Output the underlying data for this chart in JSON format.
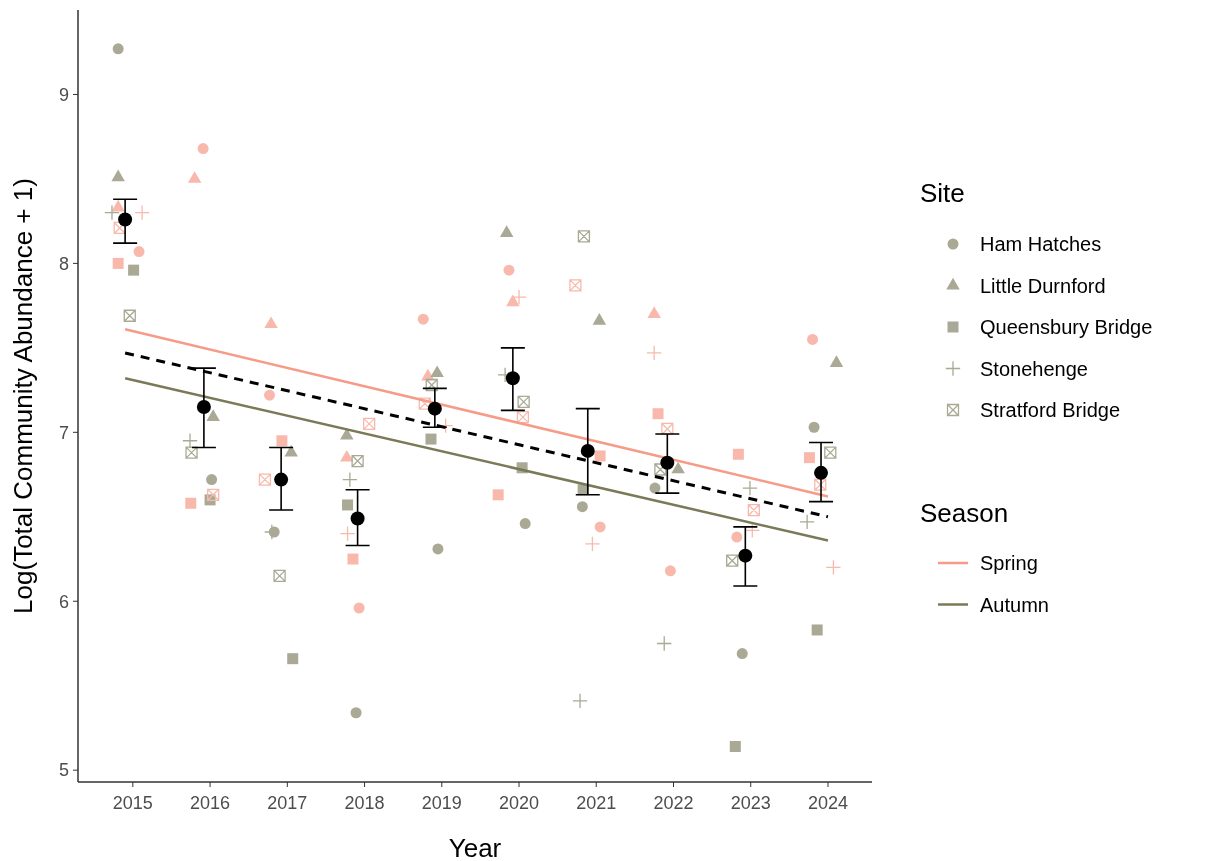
{
  "chart_data": {
    "type": "scatter",
    "xlabel": "Year",
    "ylabel": "Log(Total Community Abundance + 1)",
    "legend_title": "Site",
    "annotations": [
      "Season"
    ],
    "legend": "right",
    "grid": false,
    "xlim": [
      2014.29,
      2024.57
    ],
    "xticks": [
      2015,
      2016,
      2017,
      2018,
      2019,
      2020,
      2021,
      2022,
      2023,
      2024
    ],
    "ylim": [
      4.93,
      9.5
    ],
    "yticks": [
      5,
      6,
      7,
      8,
      9
    ],
    "series": [
      {
        "name": "Ham Hatches",
        "marker": "circle",
        "color": "#a9a995",
        "x": [
          2014.81,
          2015.08,
          2015.91,
          2016.02,
          2016.77,
          2016.83,
          2017.93,
          2017.89,
          2018.76,
          2018.95,
          2019.87,
          2020.08,
          2020.82,
          2021.05,
          2021.96,
          2021.76,
          2022.82,
          2022.89,
          2023.8,
          2023.82
        ],
        "values": [
          9.27,
          8.07,
          8.68,
          6.72,
          7.22,
          6.41,
          5.96,
          5.34,
          7.67,
          6.31,
          7.96,
          6.46,
          6.56,
          6.44,
          6.18,
          6.67,
          6.38,
          5.69,
          7.55,
          7.03
        ],
        "colors": [
          "#a9a995",
          "#f8b9ac",
          "#f8b9ac",
          "#a9a995",
          "#f8b9ac",
          "#a9a995",
          "#f8b9ac",
          "#a9a995",
          "#f8b9ac",
          "#a9a995",
          "#f8b9ac",
          "#a9a995",
          "#a9a995",
          "#f8b9ac",
          "#f8b9ac",
          "#a9a995",
          "#f8b9ac",
          "#a9a995",
          "#f8b9ac",
          "#a9a995"
        ]
      },
      {
        "name": "Little Durnford",
        "marker": "triangle",
        "color": "#a9a995",
        "x": [
          2014.81,
          2014.81,
          2015.8,
          2016.04,
          2016.79,
          2017.05,
          2017.77,
          2017.77,
          2018.82,
          2018.94,
          2019.84,
          2019.92,
          2021.04,
          2021.75,
          2022.06,
          2024.11
        ],
        "values": [
          8.51,
          8.33,
          8.5,
          7.09,
          7.64,
          6.88,
          6.98,
          6.85,
          7.33,
          7.35,
          8.18,
          7.77,
          7.66,
          7.7,
          6.78,
          7.41
        ],
        "colors": [
          "#a9a995",
          "#f8b9ac",
          "#f8b9ac",
          "#a9a995",
          "#f8b9ac",
          "#a9a995",
          "#a9a995",
          "#f8b9ac",
          "#f8b9ac",
          "#a9a995",
          "#a9a995",
          "#f8b9ac",
          "#a9a995",
          "#f8b9ac",
          "#a9a995",
          "#a9a995"
        ]
      },
      {
        "name": "Queensbury Bridge",
        "marker": "square",
        "color": "#a9a995",
        "x": [
          2014.81,
          2015.01,
          2015.75,
          2016.0,
          2016.93,
          2017.07,
          2017.78,
          2017.85,
          2018.86,
          2020.04,
          2019.73,
          2020.83,
          2021.05,
          2021.8,
          2022.84,
          2022.8,
          2023.76,
          2023.86
        ],
        "values": [
          8.0,
          7.96,
          6.58,
          6.6,
          6.95,
          5.66,
          6.57,
          6.25,
          6.96,
          6.79,
          6.63,
          6.66,
          6.86,
          7.11,
          6.87,
          5.14,
          6.85,
          5.83
        ],
        "colors": [
          "#f8b9ac",
          "#a9a995",
          "#f8b9ac",
          "#a9a995",
          "#f8b9ac",
          "#a9a995",
          "#a9a995",
          "#f8b9ac",
          "#a9a995",
          "#a9a995",
          "#f8b9ac",
          "#a9a995",
          "#f8b9ac",
          "#f8b9ac",
          "#f8b9ac",
          "#a9a995",
          "#f8b9ac",
          "#a9a995"
        ]
      },
      {
        "name": "Stonehenge",
        "marker": "cross",
        "color": "#a9a995",
        "x": [
          2014.73,
          2015.12,
          2015.74,
          2016.8,
          2017.81,
          2017.78,
          2019.05,
          2019.82,
          2020.0,
          2020.95,
          2020.79,
          2021.75,
          2021.88,
          2022.99,
          2023.02,
          2023.73,
          2024.07
        ],
        "values": [
          8.3,
          8.3,
          6.95,
          6.41,
          6.72,
          6.4,
          7.04,
          7.34,
          7.8,
          6.34,
          5.41,
          7.47,
          5.75,
          6.67,
          6.42,
          6.47,
          6.2
        ],
        "colors": [
          "#a9a995",
          "#f8b9ac",
          "#a9a995",
          "#a9a995",
          "#a9a995",
          "#f8b9ac",
          "#f8b9ac",
          "#a9a995",
          "#f8b9ac",
          "#f8b9ac",
          "#a9a995",
          "#f8b9ac",
          "#a9a995",
          "#a9a995",
          "#f8b9ac",
          "#a9a995",
          "#f8b9ac"
        ]
      },
      {
        "name": "Stratford Bridge",
        "color": "#a9a995",
        "x": [
          2014.96,
          2014.83,
          2015.76,
          2016.04,
          2016.71,
          2016.9,
          2017.91,
          2018.06,
          2018.78,
          2018.87,
          2020.06,
          2020.05,
          2020.84,
          2020.73,
          2021.92,
          2021.83,
          2023.04,
          2022.76,
          2024.03,
          2023.9
        ],
        "values": [
          7.69,
          8.21,
          6.88,
          6.63,
          6.72,
          6.15,
          6.83,
          7.05,
          7.17,
          7.28,
          7.18,
          7.09,
          8.16,
          7.87,
          7.02,
          6.78,
          6.54,
          6.24,
          6.88,
          6.69
        ],
        "colors": [
          "#a9a995",
          "#f8b9ac",
          "#a9a995",
          "#f8b9ac",
          "#f8b9ac",
          "#a9a995",
          "#a9a995",
          "#f8b9ac",
          "#f8b9ac",
          "#a9a995",
          "#a9a995",
          "#f8b9ac",
          "#a9a995",
          "#f8b9ac",
          "#f8b9ac",
          "#a9a995",
          "#f8b9ac",
          "#a9a995",
          "#a9a995",
          "#f8b9ac"
        ]
      },
      {
        "name": "Spring",
        "type": "line",
        "color": "#f69b87",
        "line_style": "solid",
        "x": [
          2014.9,
          2024.0
        ],
        "values": [
          7.61,
          6.62
        ]
      },
      {
        "name": "Autumn",
        "type": "line",
        "color": "#7a7a58",
        "line_style": "solid",
        "x": [
          2014.9,
          2024.0
        ],
        "values": [
          7.32,
          6.36
        ]
      },
      {
        "type": "line",
        "color": "#000000",
        "line_style": "dashed",
        "x": [
          2014.9,
          2024.0
        ],
        "values": [
          7.47,
          6.5
        ]
      },
      {
        "marker": "circle",
        "color": "#000000",
        "x": [
          2014.9,
          2015.92,
          2016.92,
          2017.91,
          2018.91,
          2019.92,
          2020.89,
          2021.92,
          2022.93,
          2023.91
        ],
        "values": [
          8.26,
          7.15,
          6.72,
          6.49,
          7.14,
          7.32,
          6.89,
          6.82,
          6.27,
          6.76
        ],
        "errors": [
          [
            8.12,
            8.38
          ],
          [
            6.91,
            7.38
          ],
          [
            6.54,
            6.91
          ],
          [
            6.33,
            6.66
          ],
          [
            7.03,
            7.26
          ],
          [
            7.13,
            7.5
          ],
          [
            6.63,
            7.14
          ],
          [
            6.64,
            6.99
          ],
          [
            6.09,
            6.44
          ],
          [
            6.59,
            6.94
          ]
        ]
      }
    ]
  }
}
